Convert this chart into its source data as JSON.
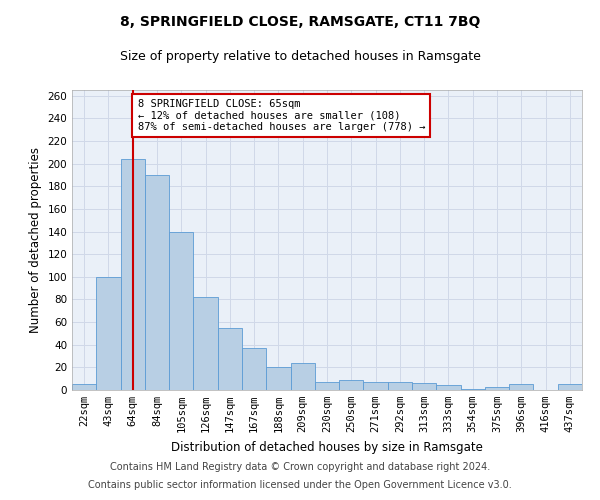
{
  "title": "8, SPRINGFIELD CLOSE, RAMSGATE, CT11 7BQ",
  "subtitle": "Size of property relative to detached houses in Ramsgate",
  "xlabel": "Distribution of detached houses by size in Ramsgate",
  "ylabel": "Number of detached properties",
  "categories": [
    "22sqm",
    "43sqm",
    "64sqm",
    "84sqm",
    "105sqm",
    "126sqm",
    "147sqm",
    "167sqm",
    "188sqm",
    "209sqm",
    "230sqm",
    "250sqm",
    "271sqm",
    "292sqm",
    "313sqm",
    "333sqm",
    "354sqm",
    "375sqm",
    "396sqm",
    "416sqm",
    "437sqm"
  ],
  "values": [
    5,
    100,
    204,
    190,
    140,
    82,
    55,
    37,
    20,
    24,
    7,
    9,
    7,
    7,
    6,
    4,
    1,
    3,
    5,
    0,
    5
  ],
  "bar_color": "#b8cfe4",
  "bar_edge_color": "#5b9bd5",
  "grid_color": "#d0d8e8",
  "vline_x_index": 2,
  "vline_color": "#cc0000",
  "annotation_line1": "8 SPRINGFIELD CLOSE: 65sqm",
  "annotation_line2": "← 12% of detached houses are smaller (108)",
  "annotation_line3": "87% of semi-detached houses are larger (778) →",
  "annotation_box_color": "#ffffff",
  "annotation_box_edge": "#cc0000",
  "ylim": [
    0,
    265
  ],
  "yticks": [
    0,
    20,
    40,
    60,
    80,
    100,
    120,
    140,
    160,
    180,
    200,
    220,
    240,
    260
  ],
  "footer1": "Contains HM Land Registry data © Crown copyright and database right 2024.",
  "footer2": "Contains public sector information licensed under the Open Government Licence v3.0.",
  "title_fontsize": 10,
  "subtitle_fontsize": 9,
  "axis_label_fontsize": 8.5,
  "tick_fontsize": 7.5,
  "annotation_fontsize": 7.5,
  "footer_fontsize": 7
}
